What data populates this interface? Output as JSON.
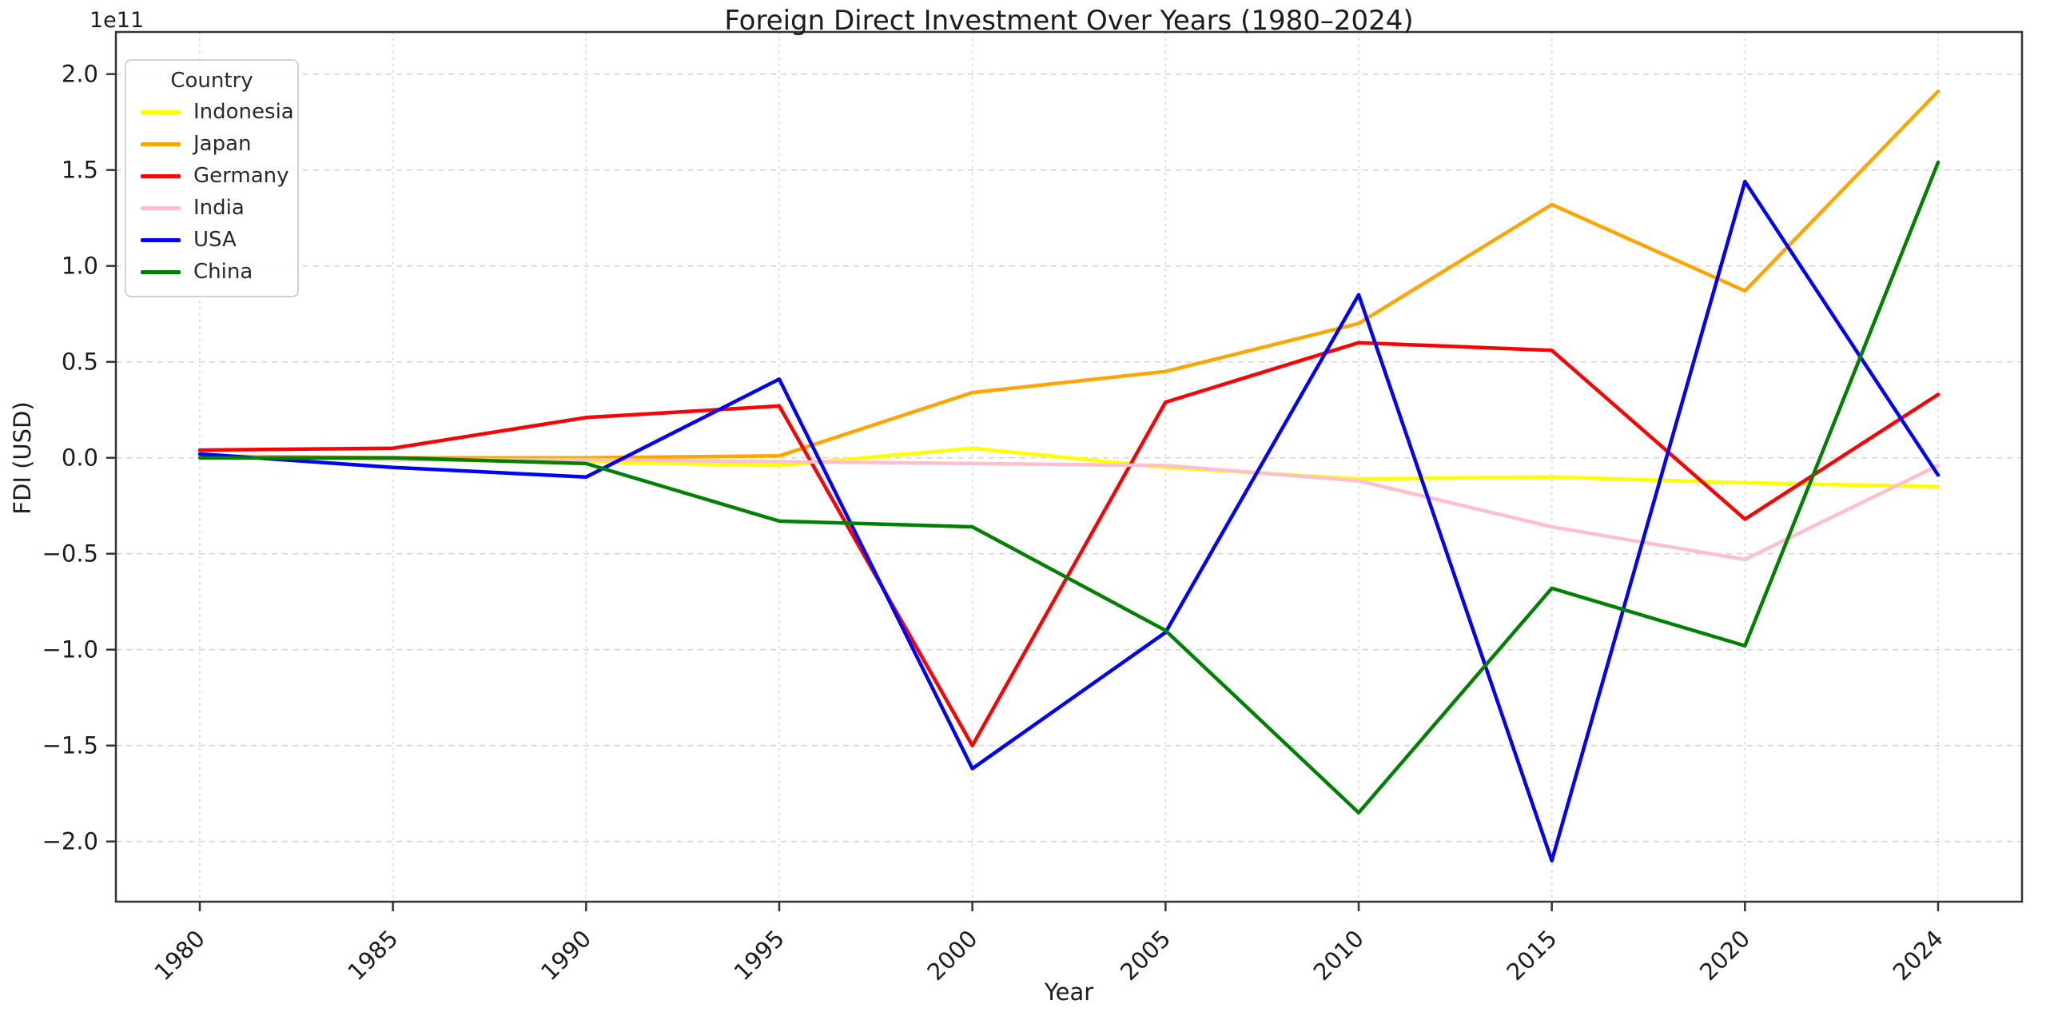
{
  "chart_data": {
    "type": "line",
    "title": "Foreign Direct Investment Over Years (1980–2024)",
    "xlabel": "Year",
    "ylabel": "FDI (USD)",
    "offset_text": "1e11",
    "legend_title": "Country",
    "legend_position": "upper left",
    "grid": true,
    "unit_scale": 100000000000.0,
    "categories": [
      1980,
      1985,
      1990,
      1995,
      2000,
      2005,
      2010,
      2015,
      2020,
      2024
    ],
    "x_tick_labels": [
      "1980",
      "1985",
      "1990",
      "1995",
      "2000",
      "2005",
      "2010",
      "2015",
      "2020",
      "2024"
    ],
    "y_tick_values": [
      -2.0,
      -1.5,
      -1.0,
      -0.5,
      0.0,
      0.5,
      1.0,
      1.5,
      2.0
    ],
    "y_tick_labels": [
      "−2.0",
      "−1.5",
      "−1.0",
      "−0.5",
      "0.0",
      "0.5",
      "1.0",
      "1.5",
      "2.0"
    ],
    "ylim_1e11": [
      -2.31,
      2.22
    ],
    "series": [
      {
        "name": "Indonesia",
        "color": "#ffff00",
        "values_1e11": [
          0.01,
          -0.01,
          -0.02,
          -0.04,
          0.05,
          -0.05,
          -0.11,
          -0.1,
          -0.13,
          -0.15
        ]
      },
      {
        "name": "Japan",
        "color": "#ffa500",
        "values_1e11": [
          0.01,
          0.0,
          0.0,
          0.01,
          0.34,
          0.45,
          0.7,
          1.32,
          0.87,
          1.91
        ]
      },
      {
        "name": "Germany",
        "color": "#ff0000",
        "values_1e11": [
          0.04,
          0.05,
          0.21,
          0.27,
          -1.5,
          0.29,
          0.6,
          0.56,
          -0.32,
          0.33
        ]
      },
      {
        "name": "India",
        "color": "#ffc0cb",
        "values_1e11": [
          0.01,
          -0.01,
          -0.01,
          -0.02,
          -0.03,
          -0.04,
          -0.12,
          -0.36,
          -0.53,
          -0.04
        ]
      },
      {
        "name": "USA",
        "color": "#0000ff",
        "values_1e11": [
          0.02,
          -0.05,
          -0.1,
          0.41,
          -1.62,
          -0.91,
          0.85,
          -2.1,
          1.44,
          -0.09
        ]
      },
      {
        "name": "China",
        "color": "#008000",
        "values_1e11": [
          0.0,
          0.0,
          -0.03,
          -0.33,
          -0.36,
          -0.9,
          -1.85,
          -0.68,
          -0.98,
          1.54
        ]
      }
    ]
  }
}
